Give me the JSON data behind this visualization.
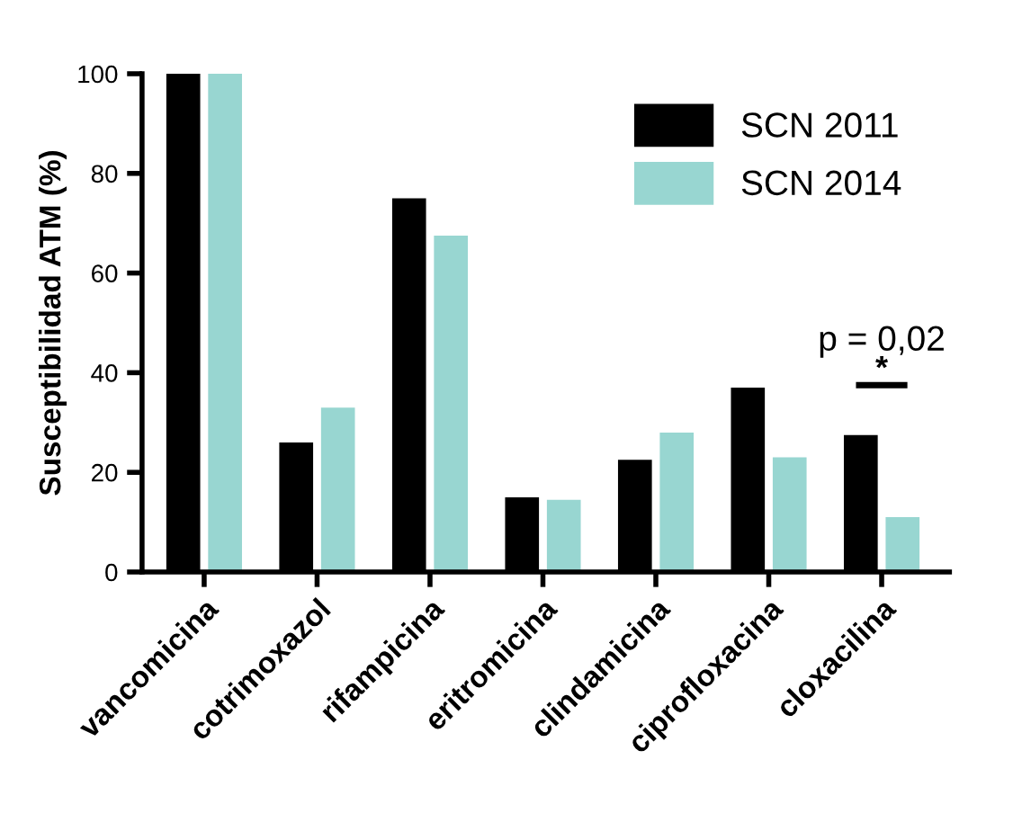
{
  "chart_data": {
    "type": "bar",
    "ylabel": "Susceptibilidad ATM (%)",
    "categories": [
      "vancomicina",
      "cotrimoxazol",
      "rifampicina",
      "eritromicina",
      "clindamicina",
      "ciprofloxacina",
      "cloxacilina"
    ],
    "series": [
      {
        "name": "SCN 2011",
        "color": "#000000",
        "values": [
          100,
          26,
          75,
          15,
          22.5,
          37,
          27.5
        ]
      },
      {
        "name": "SCN 2014",
        "color": "#98d6d1",
        "values": [
          100,
          33,
          67.5,
          14.5,
          28,
          23,
          11
        ]
      }
    ],
    "ylim": [
      0,
      100
    ],
    "yticks": [
      0,
      20,
      40,
      60,
      80,
      100
    ],
    "grid": false,
    "legend": "top right",
    "annotations": [
      "p = 0,02",
      "*"
    ]
  }
}
